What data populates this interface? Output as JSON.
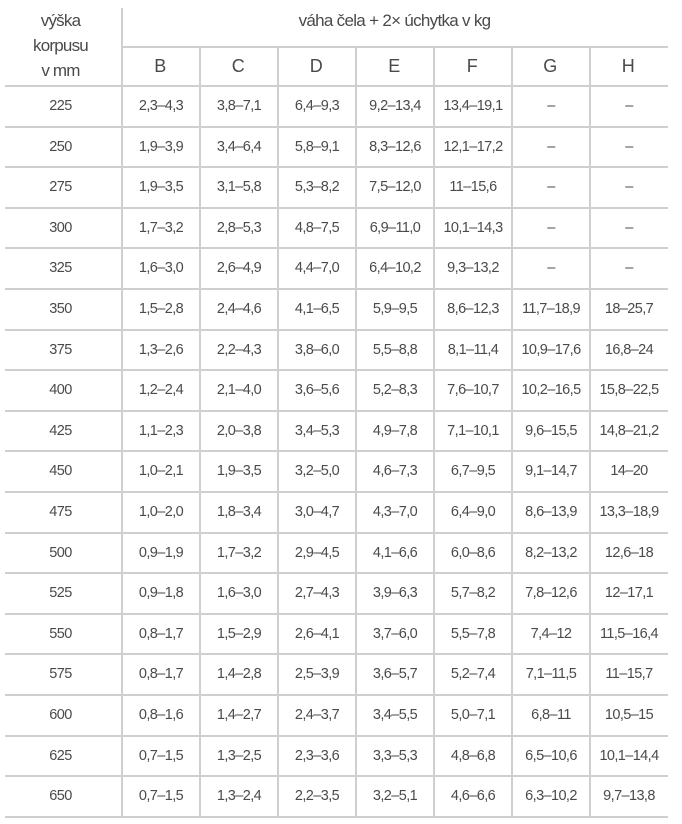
{
  "header": {
    "row_label_lines": [
      "výška",
      "korpusu",
      "v mm"
    ],
    "group_label": "váha čela + 2× úchytka v kg",
    "columns": [
      "B",
      "C",
      "D",
      "E",
      "F",
      "G",
      "H"
    ]
  },
  "rows": [
    {
      "height": "225",
      "values": [
        "2,3–4,3",
        "3,8–7,1",
        "6,4–9,3",
        "9,2–13,4",
        "13,4–19,1",
        "–",
        "–"
      ]
    },
    {
      "height": "250",
      "values": [
        "1,9–3,9",
        "3,4–6,4",
        "5,8–9,1",
        "8,3–12,6",
        "12,1–17,2",
        "–",
        "–"
      ]
    },
    {
      "height": "275",
      "values": [
        "1,9–3,5",
        "3,1–5,8",
        "5,3–8,2",
        "7,5–12,0",
        "11–15,6",
        "–",
        "–"
      ]
    },
    {
      "height": "300",
      "values": [
        "1,7–3,2",
        "2,8–5,3",
        "4,8–7,5",
        "6,9–11,0",
        "10,1–14,3",
        "–",
        "–"
      ]
    },
    {
      "height": "325",
      "values": [
        "1,6–3,0",
        "2,6–4,9",
        "4,4–7,0",
        "6,4–10,2",
        "9,3–13,2",
        "–",
        "–"
      ]
    },
    {
      "height": "350",
      "values": [
        "1,5–2,8",
        "2,4–4,6",
        "4,1–6,5",
        "5,9–9,5",
        "8,6–12,3",
        "11,7–18,9",
        "18–25,7"
      ]
    },
    {
      "height": "375",
      "values": [
        "1,3–2,6",
        "2,2–4,3",
        "3,8–6,0",
        "5,5–8,8",
        "8,1–11,4",
        "10,9–17,6",
        "16,8–24"
      ]
    },
    {
      "height": "400",
      "values": [
        "1,2–2,4",
        "2,1–4,0",
        "3,6–5,6",
        "5,2–8,3",
        "7,6–10,7",
        "10,2–16,5",
        "15,8–22,5"
      ]
    },
    {
      "height": "425",
      "values": [
        "1,1–2,3",
        "2,0–3,8",
        "3,4–5,3",
        "4,9–7,8",
        "7,1–10,1",
        "9,6–15,5",
        "14,8–21,2"
      ]
    },
    {
      "height": "450",
      "values": [
        "1,0–2,1",
        "1,9–3,5",
        "3,2–5,0",
        "4,6–7,3",
        "6,7–9,5",
        "9,1–14,7",
        "14–20"
      ]
    },
    {
      "height": "475",
      "values": [
        "1,0–2,0",
        "1,8–3,4",
        "3,0–4,7",
        "4,3–7,0",
        "6,4–9,0",
        "8,6–13,9",
        "13,3–18,9"
      ]
    },
    {
      "height": "500",
      "values": [
        "0,9–1,9",
        "1,7–3,2",
        "2,9–4,5",
        "4,1–6,6",
        "6,0–8,6",
        "8,2–13,2",
        "12,6–18"
      ]
    },
    {
      "height": "525",
      "values": [
        "0,9–1,8",
        "1,6–3,0",
        "2,7–4,3",
        "3,9–6,3",
        "5,7–8,2",
        "7,8–12,6",
        "12–17,1"
      ]
    },
    {
      "height": "550",
      "values": [
        "0,8–1,7",
        "1,5–2,9",
        "2,6–4,1",
        "3,7–6,0",
        "5,5–7,8",
        "7,4–12",
        "11,5–16,4"
      ]
    },
    {
      "height": "575",
      "values": [
        "0,8–1,7",
        "1,4–2,8",
        "2,5–3,9",
        "3,6–5,7",
        "5,2–7,4",
        "7,1–11,5",
        "11–15,7"
      ]
    },
    {
      "height": "600",
      "values": [
        "0,8–1,6",
        "1,4–2,7",
        "2,4–3,7",
        "3,4–5,5",
        "5,0–7,1",
        "6,8–11",
        "10,5–15"
      ]
    },
    {
      "height": "625",
      "values": [
        "0,7–1,5",
        "1,3–2,5",
        "2,3–3,6",
        "3,3–5,3",
        "4,8–6,8",
        "6,5–10,6",
        "10,1–14,4"
      ]
    },
    {
      "height": "650",
      "values": [
        "0,7–1,5",
        "1,3–2,4",
        "2,2–3,5",
        "3,2–5,1",
        "4,6–6,6",
        "6,3–10,2",
        "9,7–13,8"
      ]
    }
  ],
  "colors": {
    "text": "#4a4a4a",
    "rule": "#cfcfcf"
  }
}
